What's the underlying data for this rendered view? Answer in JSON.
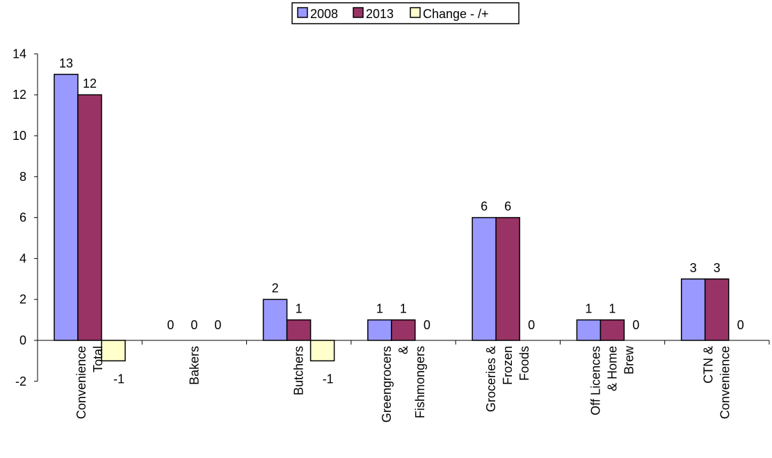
{
  "chart_data": {
    "type": "bar",
    "title": "",
    "xlabel": "",
    "ylabel": "",
    "ylim": [
      -2,
      14
    ],
    "yticks": [
      -2,
      0,
      2,
      4,
      6,
      8,
      10,
      12,
      14
    ],
    "ytick_labels": [
      "-2",
      "0",
      "2",
      "4",
      "6",
      "8",
      "10",
      "12",
      "14"
    ],
    "grid": false,
    "legend_position": "top",
    "categories": [
      [
        "Convenience",
        "Total"
      ],
      [
        "Bakers"
      ],
      [
        "Butchers"
      ],
      [
        "Greengrocers",
        "&",
        "Fishmongers"
      ],
      [
        "Groceries &",
        "Frozen",
        "Foods"
      ],
      [
        "Off Licences",
        "& Home",
        "Brew"
      ],
      [
        "CTN &",
        "Convenience"
      ]
    ],
    "series": [
      {
        "name": "2008",
        "color": "#9999ff",
        "values": [
          13,
          0,
          2,
          1,
          6,
          1,
          3
        ],
        "labels": [
          "13",
          "0",
          "2",
          "1",
          "6",
          "1",
          "3"
        ]
      },
      {
        "name": "2013",
        "color": "#993366",
        "values": [
          12,
          0,
          1,
          1,
          6,
          1,
          3
        ],
        "labels": [
          "12",
          "0",
          "1",
          "1",
          "6",
          "1",
          "3"
        ]
      },
      {
        "name": "Change - /+",
        "color": "#ffffcc",
        "values": [
          -1,
          0,
          -1,
          0,
          0,
          0,
          0
        ],
        "labels": [
          "-1",
          "0",
          "-1",
          "0",
          "0",
          "0",
          "0"
        ]
      }
    ]
  }
}
